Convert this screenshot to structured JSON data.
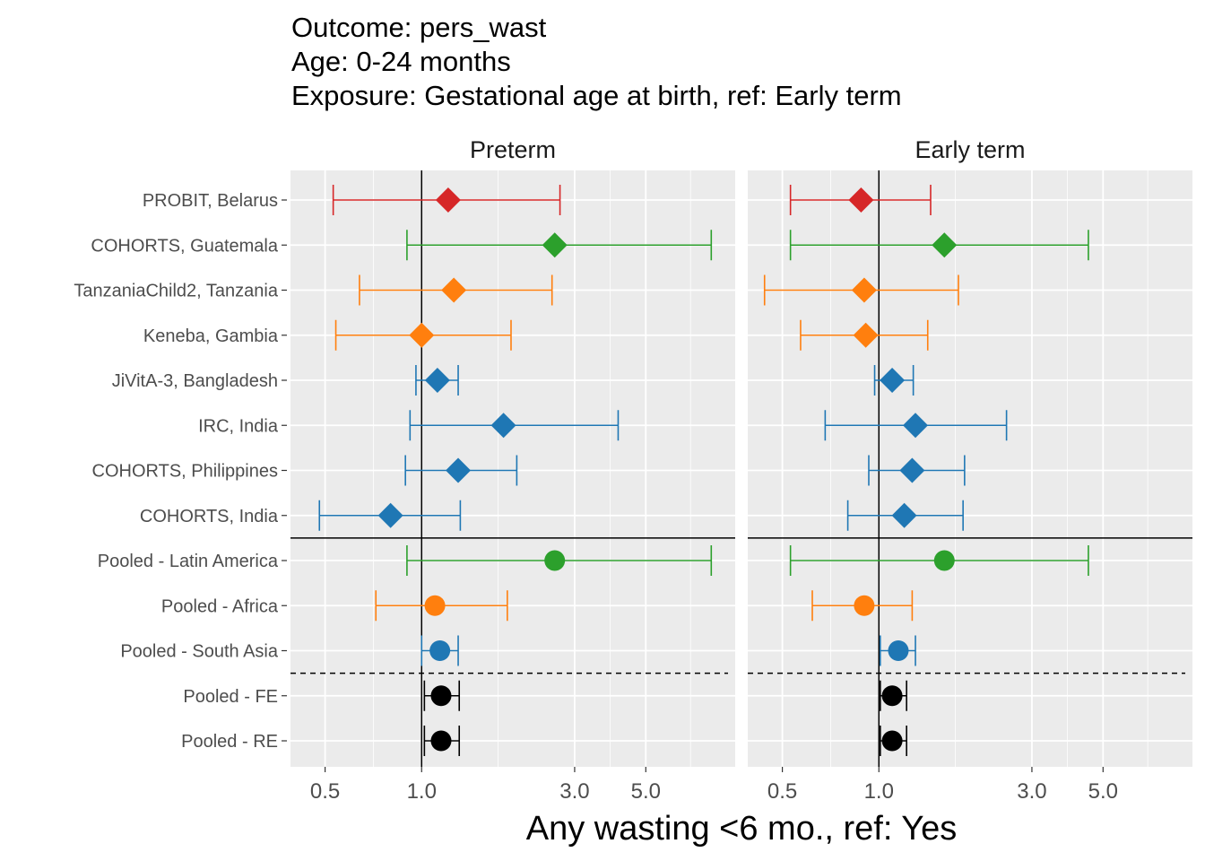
{
  "titles": {
    "line1": "Outcome: pers_wast",
    "line2": "Age: 0-24 months",
    "line3": "Exposure: Gestational age at birth, ref: Early term"
  },
  "chart_data": {
    "type": "forest",
    "x_scale": "log",
    "xlim": [
      0.39,
      9.5
    ],
    "x_ticks": [
      0.5,
      1.0,
      3.0,
      5.0
    ],
    "x_tick_labels": [
      "0.5",
      "1.0",
      "3.0",
      "5.0"
    ],
    "xlabel": "Any wasting  <6 mo., ref: Yes",
    "reference_line": 1.0,
    "rows": [
      "PROBIT, Belarus",
      "COHORTS, Guatemala",
      "TanzaniaChild2, Tanzania",
      "Keneba, Gambia",
      "JiVitA-3, Bangladesh",
      "IRC, India",
      "COHORTS, Philippines",
      "COHORTS, India",
      "Pooled - Latin America",
      "Pooled - Africa",
      "Pooled - South Asia",
      "Pooled - FE",
      "Pooled - RE"
    ],
    "row_colors": [
      "#d62728",
      "#2ca02c",
      "#ff7f0e",
      "#ff7f0e",
      "#1f77b4",
      "#1f77b4",
      "#1f77b4",
      "#1f77b4",
      "#2ca02c",
      "#ff7f0e",
      "#1f77b4",
      "#000000",
      "#000000"
    ],
    "row_shapes": [
      "diamond",
      "diamond",
      "diamond",
      "diamond",
      "diamond",
      "diamond",
      "diamond",
      "diamond",
      "circle",
      "circle",
      "circle",
      "circle",
      "circle"
    ],
    "panels": [
      {
        "name": "Preterm",
        "estimates": [
          [
            1.21,
            0.53,
            2.7
          ],
          [
            2.6,
            0.9,
            8.0
          ],
          [
            1.26,
            0.64,
            2.55
          ],
          [
            1.0,
            0.54,
            1.9
          ],
          [
            1.12,
            0.96,
            1.3
          ],
          [
            1.8,
            0.92,
            4.1
          ],
          [
            1.3,
            0.89,
            1.98
          ],
          [
            0.8,
            0.48,
            1.32
          ],
          [
            2.6,
            0.9,
            8.0
          ],
          [
            1.1,
            0.72,
            1.85
          ],
          [
            1.14,
            1.0,
            1.3
          ],
          [
            1.15,
            1.02,
            1.31
          ],
          [
            1.15,
            1.02,
            1.31
          ]
        ]
      },
      {
        "name": "Early term",
        "estimates": [
          [
            0.88,
            0.53,
            1.45
          ],
          [
            1.6,
            0.53,
            4.5
          ],
          [
            0.9,
            0.44,
            1.77
          ],
          [
            0.91,
            0.57,
            1.42
          ],
          [
            1.1,
            0.97,
            1.28
          ],
          [
            1.3,
            0.68,
            2.5
          ],
          [
            1.27,
            0.93,
            1.85
          ],
          [
            1.2,
            0.8,
            1.83
          ],
          [
            1.6,
            0.53,
            4.5
          ],
          [
            0.9,
            0.62,
            1.27
          ],
          [
            1.15,
            1.01,
            1.3
          ],
          [
            1.1,
            1.01,
            1.22
          ],
          [
            1.1,
            1.01,
            1.22
          ]
        ]
      }
    ],
    "solid_separator_after_row": 8,
    "dashed_separator_after_row": 11
  }
}
